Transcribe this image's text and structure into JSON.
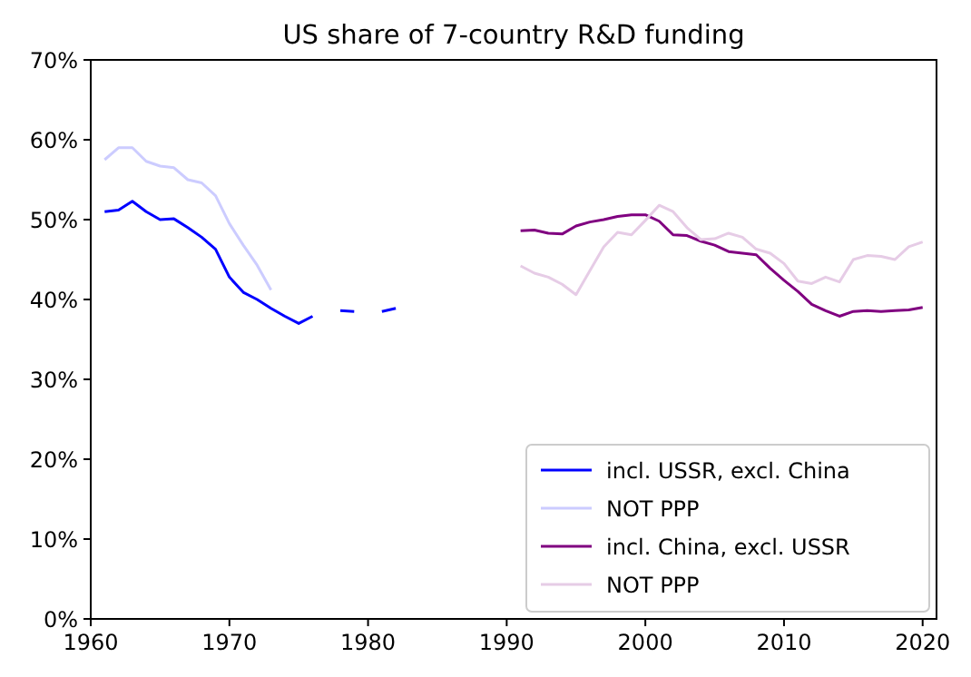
{
  "chart_data": {
    "type": "line",
    "title": "US share of 7-country R&D funding",
    "xlim": [
      1960,
      2021
    ],
    "xticks": [
      1960,
      1970,
      1980,
      1990,
      2000,
      2010,
      2020
    ],
    "ylim": [
      0,
      70
    ],
    "yticks": [
      {
        "value": 0,
        "label": "0%"
      },
      {
        "value": 10,
        "label": "10%"
      },
      {
        "value": 20,
        "label": "20%"
      },
      {
        "value": 30,
        "label": "30%"
      },
      {
        "value": 40,
        "label": "40%"
      },
      {
        "value": 50,
        "label": "50%"
      },
      {
        "value": 60,
        "label": "60%"
      },
      {
        "value": 70,
        "label": "70%"
      }
    ],
    "legend": "bottom right",
    "grid": false,
    "marker": "none",
    "line_style": "solid",
    "series": [
      {
        "name": "incl. USSR, excl. China",
        "color": "#0000ff",
        "x": [
          1961,
          1962,
          1963,
          1964,
          1965,
          1966,
          1967,
          1968,
          1969,
          1970,
          1971,
          1972,
          1973,
          1974,
          1975,
          1976,
          1977,
          1978,
          1979,
          1980,
          1981,
          1982
        ],
        "values": [
          51.0,
          51.2,
          52.3,
          51.0,
          50.0,
          50.1,
          49.0,
          47.8,
          46.3,
          42.8,
          40.9,
          40.0,
          38.9,
          37.9,
          37.0,
          37.9,
          null,
          38.6,
          38.5,
          null,
          38.5,
          38.9
        ]
      },
      {
        "name": "NOT PPP",
        "color": "#ccccff",
        "x": [
          1961,
          1962,
          1963,
          1964,
          1965,
          1966,
          1967,
          1968,
          1969,
          1970,
          1971,
          1972,
          1973
        ],
        "values": [
          57.5,
          59.0,
          59.0,
          57.3,
          56.7,
          56.5,
          55.0,
          54.6,
          53.0,
          49.5,
          46.8,
          44.3,
          41.2
        ]
      },
      {
        "name": "incl. China, excl. USSR",
        "color": "#800080",
        "x": [
          1991,
          1992,
          1993,
          1994,
          1995,
          1996,
          1997,
          1998,
          1999,
          2000,
          2001,
          2002,
          2003,
          2004,
          2005,
          2006,
          2007,
          2008,
          2009,
          2010,
          2011,
          2012,
          2013,
          2014,
          2015,
          2016,
          2017,
          2018,
          2019,
          2020
        ],
        "values": [
          48.6,
          48.7,
          48.3,
          48.2,
          49.2,
          49.7,
          50.0,
          50.4,
          50.6,
          50.6,
          49.8,
          48.1,
          48.0,
          47.3,
          46.8,
          46.0,
          45.8,
          45.6,
          43.9,
          42.4,
          41.0,
          39.4,
          38.6,
          37.9,
          38.5,
          38.6,
          38.5,
          38.6,
          38.7,
          39.0
        ]
      },
      {
        "name": "NOT PPP",
        "color": "#e6cce6",
        "x": [
          1991,
          1992,
          1993,
          1994,
          1995,
          1996,
          1997,
          1998,
          1999,
          2000,
          2001,
          2002,
          2003,
          2004,
          2005,
          2006,
          2007,
          2008,
          2009,
          2010,
          2011,
          2012,
          2013,
          2014,
          2015,
          2016,
          2017,
          2018,
          2019,
          2020
        ],
        "values": [
          44.2,
          43.3,
          42.8,
          41.9,
          40.6,
          43.6,
          46.6,
          48.4,
          48.1,
          49.9,
          51.8,
          51.0,
          49.0,
          47.5,
          47.6,
          48.3,
          47.8,
          46.3,
          45.8,
          44.5,
          42.3,
          42.0,
          42.8,
          42.2,
          45.0,
          45.5,
          45.4,
          45.0,
          46.6,
          47.2
        ]
      }
    ]
  }
}
